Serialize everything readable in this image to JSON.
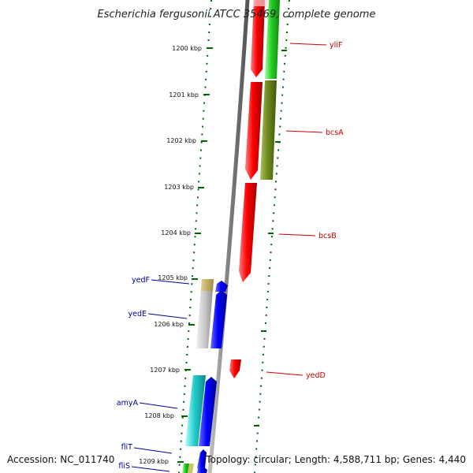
{
  "title": "Escherichia fergusonii ATCC 35469, complete genome",
  "footer": {
    "accession": "Accession: NC_011740",
    "summary": "Topology: circular; Length: 4,588,711 bp; Genes: 4,440"
  },
  "scale": {
    "ticks": [
      "1200 kbp",
      "1201 kbp",
      "1202 kbp",
      "1203 kbp",
      "1204 kbp",
      "1205 kbp",
      "1206 kbp",
      "1207 kbp",
      "1208 kbp",
      "1209 kbp"
    ]
  },
  "labels": {
    "forward": [
      "yliF",
      "bcsA",
      "bcsB",
      "yedD"
    ],
    "reverse": [
      "yedF",
      "yedE",
      "amyA",
      "fliT",
      "fliS"
    ]
  },
  "colors": {
    "forward_cds": "#ff0000",
    "reverse_cds": "#0000ff",
    "backbone": "#888888",
    "ticks": "#006600",
    "forward_label": "#cc0000",
    "reverse_label": "#000099"
  }
}
